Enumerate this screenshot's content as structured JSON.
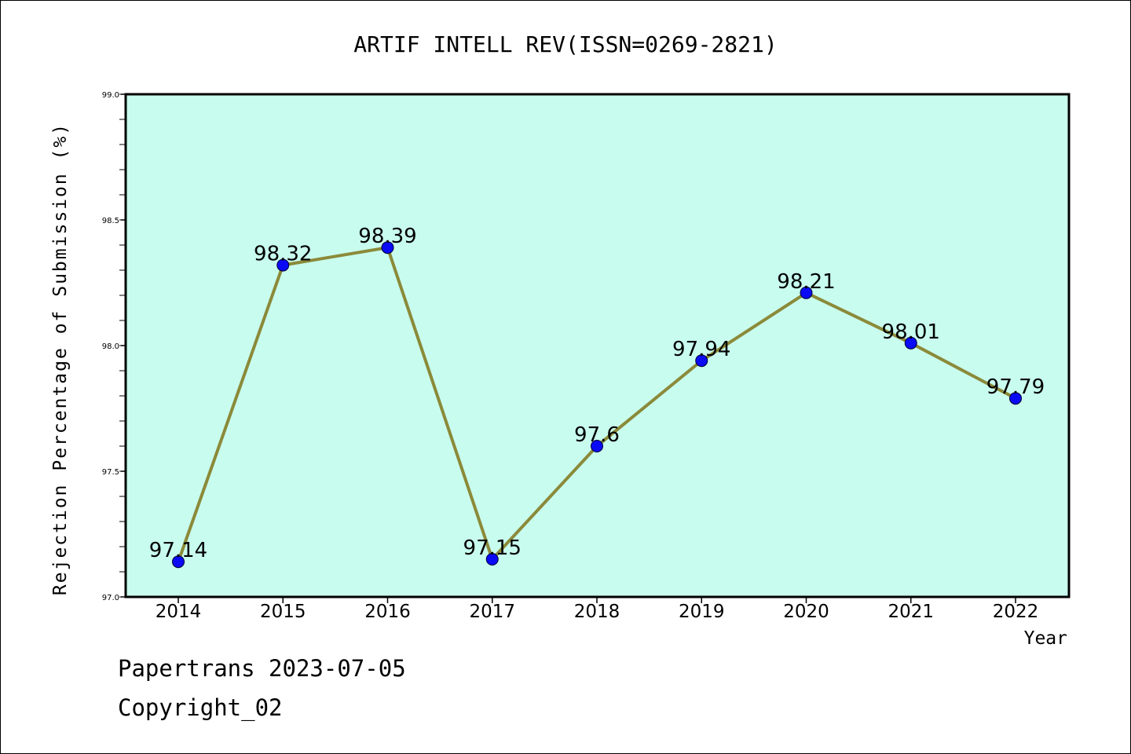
{
  "chart_data": {
    "type": "line",
    "title": "ARTIF INTELL REV(ISSN=0269-2821)",
    "xlabel": "Year",
    "ylabel": "Rejection Percentage of Submission (%)",
    "categories": [
      "2014",
      "2015",
      "2016",
      "2017",
      "2018",
      "2019",
      "2020",
      "2021",
      "2022"
    ],
    "series": [
      {
        "values": [
          97.14,
          98.32,
          98.39,
          97.15,
          97.6,
          97.94,
          98.21,
          98.01,
          97.79
        ],
        "labels": [
          "97.14",
          "98.32",
          "98.39",
          "97.15",
          "97.6",
          "97.94",
          "98.21",
          "98.01",
          "97.79"
        ]
      }
    ],
    "ylim": [
      97.0,
      99.0
    ],
    "yticks": [
      "97.0",
      "97.5",
      "98.0",
      "98.5",
      "99.0"
    ],
    "grid": false,
    "colors": {
      "plot_background": "#c8fcee",
      "line": "#8b8a3a",
      "marker": "#0a0af5"
    }
  },
  "footer": {
    "line1": "Papertrans 2023-07-05",
    "line2": "Copyright_02"
  }
}
